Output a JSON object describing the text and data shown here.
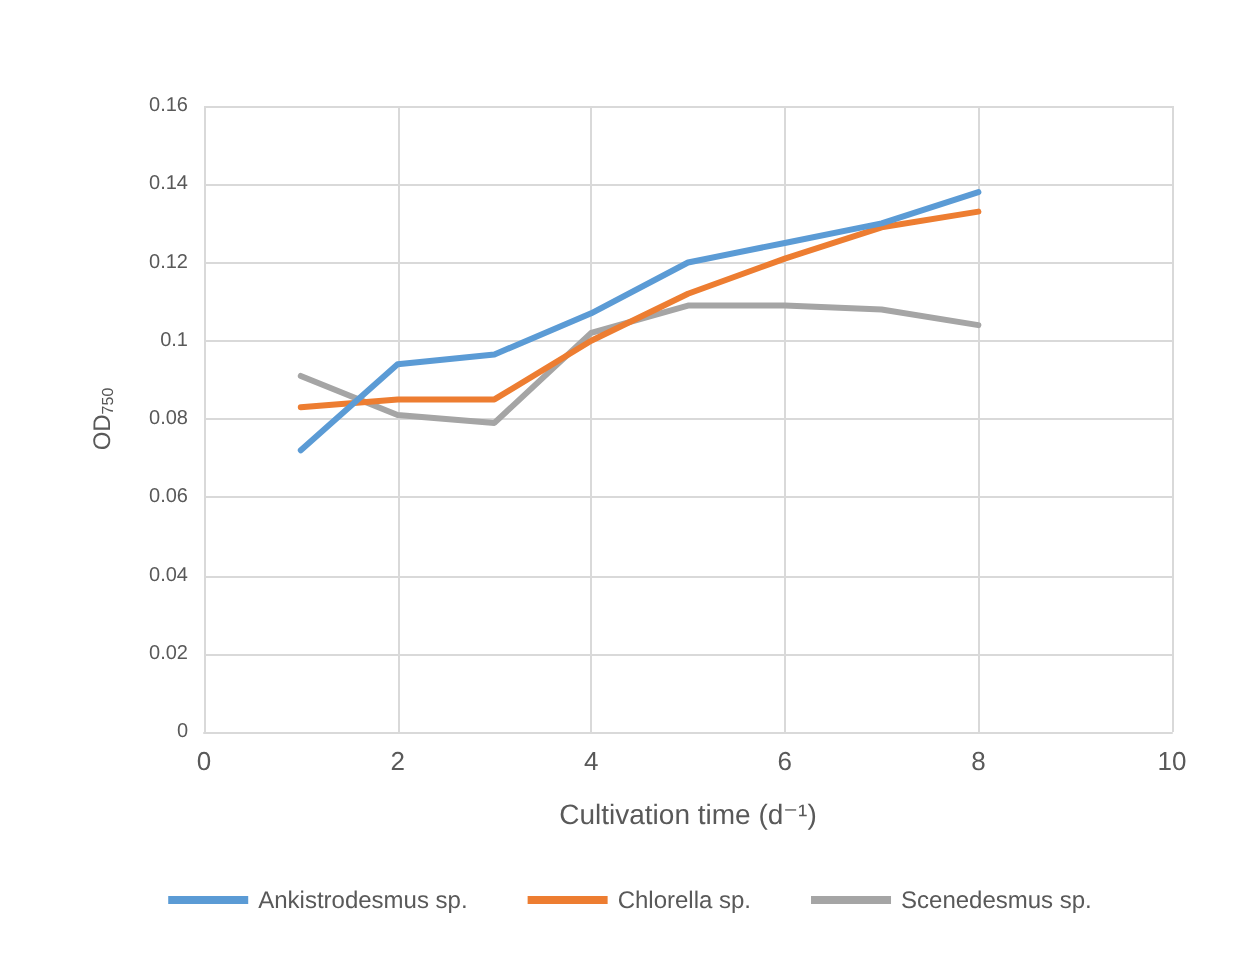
{
  "chart_data": {
    "type": "line",
    "xlabel": "Cultivation time (d⁻¹)",
    "ylabel": "OD$_{750}$",
    "x": [
      1,
      2,
      3,
      4,
      5,
      6,
      7,
      8
    ],
    "series": [
      {
        "name": "Ankistrodesmus sp.",
        "color": "#5b9bd5",
        "values": [
          0.072,
          0.094,
          0.0965,
          0.107,
          0.12,
          0.125,
          0.13,
          0.138
        ]
      },
      {
        "name": "Chlorella sp.",
        "color": "#ed7d31",
        "values": [
          0.083,
          0.085,
          0.085,
          0.1,
          0.112,
          0.121,
          0.129,
          0.133
        ]
      },
      {
        "name": "Scenedesmus sp.",
        "color": "#a5a5a5",
        "values": [
          0.091,
          0.081,
          0.079,
          0.102,
          0.109,
          0.109,
          0.108,
          0.104
        ]
      }
    ],
    "xlim": [
      0,
      10
    ],
    "xticks": [
      0,
      2,
      4,
      6,
      8,
      10
    ],
    "ylim": [
      0,
      0.16
    ],
    "yticks": [
      0,
      0.02,
      0.04,
      0.06,
      0.08,
      0.1,
      0.12,
      0.14,
      0.16
    ],
    "grid": true,
    "legend": "bottom",
    "marker": "none",
    "line_style": "solid"
  }
}
